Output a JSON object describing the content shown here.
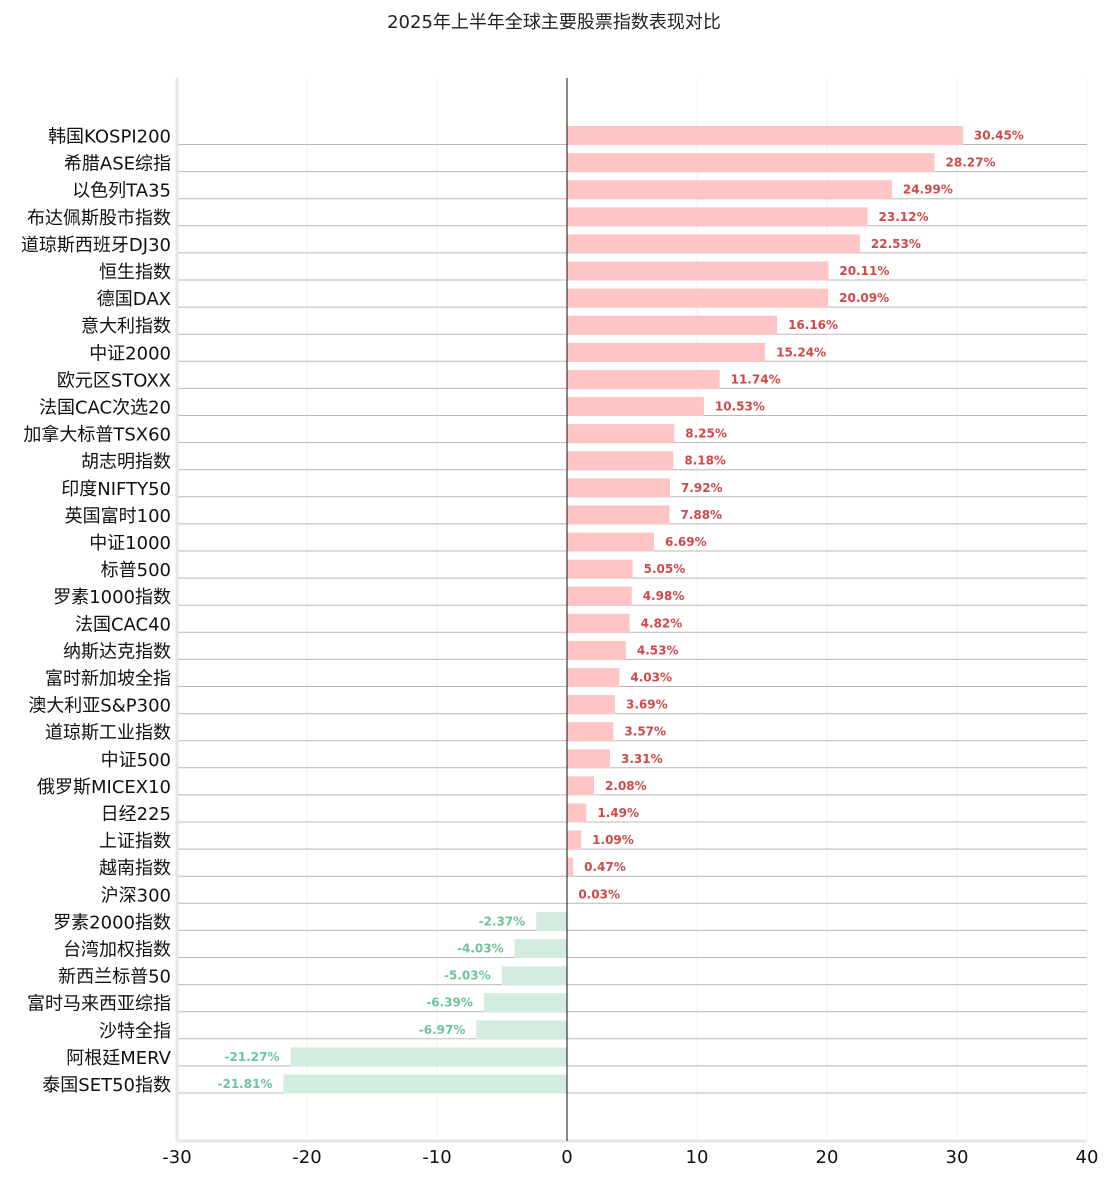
{
  "chart_data": {
    "type": "bar",
    "orientation": "horizontal",
    "title": "2025年上半年全球主要股票指数表现对比",
    "xlim": [
      -30,
      40
    ],
    "xticks": [
      -30,
      -20,
      -10,
      0,
      10,
      20,
      30,
      40
    ],
    "categories": [
      "韩国KOSPI200",
      "希腊ASE综指",
      "以色列TA35",
      "布达佩斯股市指数",
      "道琼斯西班牙DJ30",
      "恒生指数",
      "德国DAX",
      "意大利指数",
      "中证2000",
      "欧元区STOXX",
      "法国CAC次选20",
      "加拿大标普TSX60",
      "胡志明指数",
      "印度NIFTY50",
      "英国富时100",
      "中证1000",
      "标普500",
      "罗素1000指数",
      "法国CAC40",
      "纳斯达克指数",
      "富时新加坡全指",
      "澳大利亚S&P300",
      "道琼斯工业指数",
      "中证500",
      "俄罗斯MICEX10",
      "日经225",
      "上证指数",
      "越南指数",
      "沪深300",
      "罗素2000指数",
      "台湾加权指数",
      "新西兰标普50",
      "富时马来西亚综指",
      "沙特全指",
      "阿根廷MERV",
      "泰国SET50指数"
    ],
    "values": [
      30.45,
      28.27,
      24.99,
      23.12,
      22.53,
      20.11,
      20.09,
      16.16,
      15.24,
      11.74,
      10.53,
      8.25,
      8.18,
      7.92,
      7.88,
      6.69,
      5.05,
      4.98,
      4.82,
      4.53,
      4.03,
      3.69,
      3.57,
      3.31,
      2.08,
      1.49,
      1.09,
      0.47,
      0.03,
      -2.37,
      -4.03,
      -5.03,
      -6.39,
      -6.97,
      -21.27,
      -21.81
    ],
    "value_labels": [
      "30.45%",
      "28.27%",
      "24.99%",
      "23.12%",
      "22.53%",
      "20.11%",
      "20.09%",
      "16.16%",
      "15.24%",
      "11.74%",
      "10.53%",
      "8.25%",
      "8.18%",
      "7.92%",
      "7.88%",
      "6.69%",
      "5.05%",
      "4.98%",
      "4.82%",
      "4.53%",
      "4.03%",
      "3.69%",
      "3.57%",
      "3.31%",
      "2.08%",
      "1.49%",
      "1.09%",
      "0.47%",
      "0.03%",
      "-2.37%",
      "-4.03%",
      "-5.03%",
      "-6.39%",
      "-6.97%",
      "-21.27%",
      "-21.81%"
    ],
    "colors": {
      "positive_bar": "#ffc4c4",
      "negative_bar": "#d2ece0",
      "positive_label": "#d04848",
      "negative_label": "#6cc596",
      "gridline": "#b8b8b8",
      "zero_line": "#111111"
    },
    "grid": "horizontal",
    "legend": "none"
  }
}
